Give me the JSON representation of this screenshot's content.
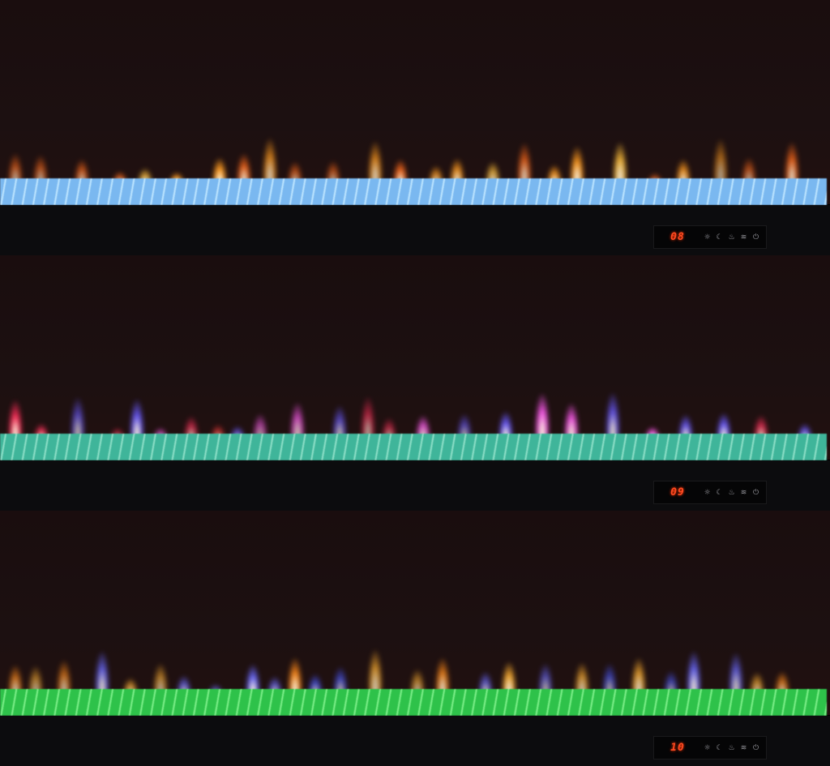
{
  "units": [
    {
      "display": "08",
      "bed_color": "#7ab8f0",
      "bed_edge": "#bfe6ff",
      "flame_colors": [
        "#ff9a1e",
        "#ff6a1a",
        "#ffbf3a"
      ]
    },
    {
      "display": "09",
      "bed_color": "#3fb59a",
      "bed_edge": "#8fe0c8",
      "flame_colors": [
        "#ff2f5a",
        "#ff5af0",
        "#6a5bff",
        "#ff3a3a"
      ]
    },
    {
      "display": "10",
      "bed_color": "#2ec24a",
      "bed_edge": "#7ef08a",
      "flame_colors": [
        "#ff8a1a",
        "#6a6aff",
        "#4a5aff",
        "#ffb030"
      ]
    }
  ],
  "control_icons": [
    "brightness-icon",
    "timer-moon-icon",
    "flame-icon",
    "heat-icon",
    "power-icon"
  ]
}
